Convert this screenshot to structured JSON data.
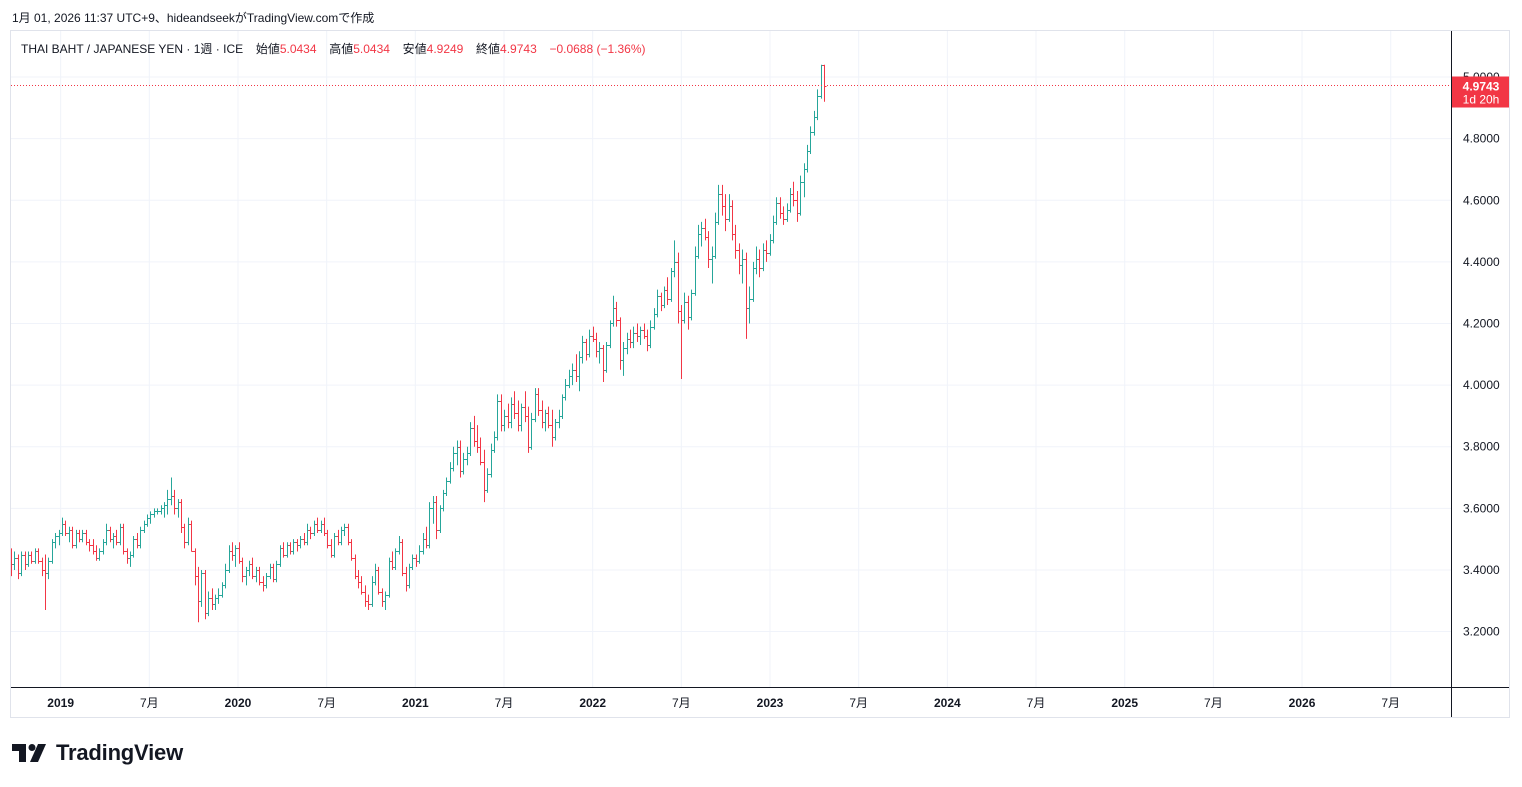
{
  "header": {
    "caption": "1月 01, 2026 11:37 UTC+9、hideandseekがTradingView.comで作成"
  },
  "legend": {
    "symbol": "THAI BAHT / JAPANESE YEN",
    "interval": "1週",
    "exchange": "ICE",
    "open_label": "始値",
    "open": "5.0434",
    "high_label": "高値",
    "high": "5.0434",
    "low_label": "安値",
    "low": "4.9249",
    "close_label": "終値",
    "close": "4.9743",
    "change": "−0.0688 (−1.36%)"
  },
  "price_tag": {
    "price": "4.9743",
    "countdown": "1d 20h"
  },
  "brand": {
    "name": "TradingView"
  },
  "colors": {
    "up": "#26a69a",
    "down": "#f23645",
    "grid": "#f0f3fa",
    "axis_text": "#131722",
    "border": "#e0e3eb"
  },
  "chart_data": {
    "type": "ohlc",
    "title": "THAI BAHT / JAPANESE YEN · 1週 · ICE",
    "interval": "weekly",
    "y_axis": {
      "side": "right",
      "ylim": [
        3.02,
        5.13
      ],
      "ticks": [
        "3.2000",
        "3.4000",
        "3.6000",
        "3.8000",
        "4.0000",
        "4.2000",
        "4.4000",
        "4.6000",
        "4.8000",
        "5.0000"
      ]
    },
    "x_axis": {
      "xlim": [
        2018.72,
        2026.84
      ],
      "ticks": [
        {
          "x": 2019.0,
          "label": "2019",
          "bold": true
        },
        {
          "x": 2019.5,
          "label": "7月",
          "bold": false
        },
        {
          "x": 2020.0,
          "label": "2020",
          "bold": true
        },
        {
          "x": 2020.5,
          "label": "7月",
          "bold": false
        },
        {
          "x": 2021.0,
          "label": "2021",
          "bold": true
        },
        {
          "x": 2021.5,
          "label": "7月",
          "bold": false
        },
        {
          "x": 2022.0,
          "label": "2022",
          "bold": true
        },
        {
          "x": 2022.5,
          "label": "7月",
          "bold": false
        },
        {
          "x": 2023.0,
          "label": "2023",
          "bold": true
        },
        {
          "x": 2023.5,
          "label": "7月",
          "bold": false
        },
        {
          "x": 2024.0,
          "label": "2024",
          "bold": true
        },
        {
          "x": 2024.5,
          "label": "7月",
          "bold": false
        },
        {
          "x": 2025.0,
          "label": "2025",
          "bold": true
        },
        {
          "x": 2025.5,
          "label": "7月",
          "bold": false
        },
        {
          "x": 2026.0,
          "label": "2026",
          "bold": true
        },
        {
          "x": 2026.5,
          "label": "7月",
          "bold": false
        }
      ]
    },
    "last_price": 4.9743,
    "series_start": 2018.72,
    "bar_step_years": 0.01918,
    "ohlc": [
      [
        3.45,
        3.47,
        3.38,
        3.42
      ],
      [
        3.42,
        3.46,
        3.4,
        3.44
      ],
      [
        3.44,
        3.45,
        3.37,
        3.39
      ],
      [
        3.39,
        3.46,
        3.38,
        3.45
      ],
      [
        3.45,
        3.46,
        3.4,
        3.42
      ],
      [
        3.42,
        3.46,
        3.41,
        3.45
      ],
      [
        3.45,
        3.46,
        3.42,
        3.43
      ],
      [
        3.43,
        3.47,
        3.42,
        3.46
      ],
      [
        3.46,
        3.47,
        3.42,
        3.43
      ],
      [
        3.43,
        3.44,
        3.38,
        3.4
      ],
      [
        3.4,
        3.45,
        3.27,
        3.39
      ],
      [
        3.39,
        3.44,
        3.37,
        3.43
      ],
      [
        3.43,
        3.5,
        3.42,
        3.49
      ],
      [
        3.49,
        3.52,
        3.47,
        3.51
      ],
      [
        3.51,
        3.53,
        3.48,
        3.52
      ],
      [
        3.52,
        3.57,
        3.51,
        3.55
      ],
      [
        3.55,
        3.56,
        3.51,
        3.52
      ],
      [
        3.52,
        3.54,
        3.49,
        3.53
      ],
      [
        3.53,
        3.54,
        3.47,
        3.48
      ],
      [
        3.48,
        3.53,
        3.47,
        3.52
      ],
      [
        3.52,
        3.53,
        3.49,
        3.5
      ],
      [
        3.5,
        3.53,
        3.49,
        3.52
      ],
      [
        3.52,
        3.53,
        3.48,
        3.49
      ],
      [
        3.49,
        3.5,
        3.46,
        3.48
      ],
      [
        3.48,
        3.5,
        3.45,
        3.46
      ],
      [
        3.46,
        3.48,
        3.43,
        3.44
      ],
      [
        3.44,
        3.47,
        3.43,
        3.46
      ],
      [
        3.46,
        3.5,
        3.45,
        3.49
      ],
      [
        3.49,
        3.55,
        3.48,
        3.53
      ],
      [
        3.53,
        3.54,
        3.49,
        3.5
      ],
      [
        3.5,
        3.52,
        3.47,
        3.51
      ],
      [
        3.51,
        3.53,
        3.48,
        3.49
      ],
      [
        3.49,
        3.55,
        3.48,
        3.54
      ],
      [
        3.54,
        3.55,
        3.45,
        3.46
      ],
      [
        3.46,
        3.47,
        3.42,
        3.44
      ],
      [
        3.44,
        3.46,
        3.41,
        3.45
      ],
      [
        3.45,
        3.51,
        3.44,
        3.5
      ],
      [
        3.5,
        3.52,
        3.47,
        3.48
      ],
      [
        3.48,
        3.54,
        3.47,
        3.53
      ],
      [
        3.53,
        3.56,
        3.52,
        3.55
      ],
      [
        3.55,
        3.58,
        3.54,
        3.57
      ],
      [
        3.57,
        3.59,
        3.55,
        3.58
      ],
      [
        3.58,
        3.6,
        3.57,
        3.59
      ],
      [
        3.59,
        3.6,
        3.58,
        3.59
      ],
      [
        3.59,
        3.61,
        3.58,
        3.6
      ],
      [
        3.6,
        3.62,
        3.57,
        3.61
      ],
      [
        3.61,
        3.66,
        3.58,
        3.63
      ],
      [
        3.63,
        3.7,
        3.61,
        3.64
      ],
      [
        3.64,
        3.66,
        3.58,
        3.6
      ],
      [
        3.6,
        3.63,
        3.57,
        3.62
      ],
      [
        3.62,
        3.63,
        3.52,
        3.54
      ],
      [
        3.54,
        3.55,
        3.47,
        3.49
      ],
      [
        3.49,
        3.57,
        3.48,
        3.55
      ],
      [
        3.55,
        3.56,
        3.46,
        3.46
      ],
      [
        3.46,
        3.47,
        3.35,
        3.38
      ],
      [
        3.38,
        3.41,
        3.23,
        3.3
      ],
      [
        3.3,
        3.4,
        3.28,
        3.39
      ],
      [
        3.39,
        3.4,
        3.24,
        3.26
      ],
      [
        3.26,
        3.33,
        3.25,
        3.31
      ],
      [
        3.31,
        3.34,
        3.27,
        3.29
      ],
      [
        3.29,
        3.32,
        3.27,
        3.31
      ],
      [
        3.31,
        3.34,
        3.29,
        3.32
      ],
      [
        3.32,
        3.36,
        3.31,
        3.35
      ],
      [
        3.35,
        3.42,
        3.34,
        3.4
      ],
      [
        3.4,
        3.48,
        3.39,
        3.46
      ],
      [
        3.46,
        3.49,
        3.43,
        3.45
      ],
      [
        3.45,
        3.48,
        3.41,
        3.47
      ],
      [
        3.47,
        3.49,
        3.42,
        3.43
      ],
      [
        3.43,
        3.44,
        3.36,
        3.38
      ],
      [
        3.38,
        3.41,
        3.35,
        3.4
      ],
      [
        3.4,
        3.43,
        3.38,
        3.42
      ],
      [
        3.42,
        3.44,
        3.37,
        3.38
      ],
      [
        3.38,
        3.41,
        3.36,
        3.4
      ],
      [
        3.4,
        3.41,
        3.35,
        3.36
      ],
      [
        3.36,
        3.38,
        3.33,
        3.35
      ],
      [
        3.35,
        3.39,
        3.34,
        3.38
      ],
      [
        3.38,
        3.42,
        3.37,
        3.41
      ],
      [
        3.41,
        3.42,
        3.36,
        3.37
      ],
      [
        3.37,
        3.43,
        3.36,
        3.42
      ],
      [
        3.42,
        3.48,
        3.41,
        3.47
      ],
      [
        3.47,
        3.49,
        3.44,
        3.45
      ],
      [
        3.45,
        3.49,
        3.44,
        3.48
      ],
      [
        3.48,
        3.49,
        3.45,
        3.46
      ],
      [
        3.46,
        3.5,
        3.45,
        3.49
      ],
      [
        3.49,
        3.5,
        3.46,
        3.48
      ],
      [
        3.48,
        3.51,
        3.47,
        3.5
      ],
      [
        3.5,
        3.52,
        3.48,
        3.49
      ],
      [
        3.49,
        3.55,
        3.48,
        3.53
      ],
      [
        3.53,
        3.54,
        3.5,
        3.52
      ],
      [
        3.52,
        3.56,
        3.51,
        3.55
      ],
      [
        3.55,
        3.57,
        3.52,
        3.53
      ],
      [
        3.53,
        3.56,
        3.52,
        3.55
      ],
      [
        3.55,
        3.57,
        3.51,
        3.52
      ],
      [
        3.52,
        3.53,
        3.47,
        3.48
      ],
      [
        3.48,
        3.5,
        3.44,
        3.45
      ],
      [
        3.45,
        3.52,
        3.44,
        3.51
      ],
      [
        3.51,
        3.53,
        3.48,
        3.49
      ],
      [
        3.49,
        3.54,
        3.48,
        3.53
      ],
      [
        3.53,
        3.55,
        3.51,
        3.54
      ],
      [
        3.54,
        3.55,
        3.48,
        3.49
      ],
      [
        3.49,
        3.5,
        3.43,
        3.44
      ],
      [
        3.44,
        3.45,
        3.37,
        3.38
      ],
      [
        3.38,
        3.4,
        3.34,
        3.36
      ],
      [
        3.36,
        3.38,
        3.32,
        3.33
      ],
      [
        3.33,
        3.35,
        3.28,
        3.3
      ],
      [
        3.3,
        3.32,
        3.27,
        3.29
      ],
      [
        3.29,
        3.38,
        3.28,
        3.36
      ],
      [
        3.36,
        3.42,
        3.35,
        3.4
      ],
      [
        3.4,
        3.41,
        3.32,
        3.33
      ],
      [
        3.33,
        3.34,
        3.28,
        3.3
      ],
      [
        3.3,
        3.33,
        3.27,
        3.32
      ],
      [
        3.32,
        3.44,
        3.31,
        3.43
      ],
      [
        3.43,
        3.46,
        3.4,
        3.41
      ],
      [
        3.41,
        3.47,
        3.4,
        3.46
      ],
      [
        3.46,
        3.51,
        3.45,
        3.49
      ],
      [
        3.49,
        3.5,
        3.38,
        3.39
      ],
      [
        3.39,
        3.41,
        3.33,
        3.35
      ],
      [
        3.35,
        3.42,
        3.34,
        3.41
      ],
      [
        3.41,
        3.45,
        3.4,
        3.44
      ],
      [
        3.44,
        3.45,
        3.41,
        3.43
      ],
      [
        3.43,
        3.48,
        3.42,
        3.46
      ],
      [
        3.46,
        3.52,
        3.45,
        3.5
      ],
      [
        3.5,
        3.54,
        3.47,
        3.48
      ],
      [
        3.48,
        3.62,
        3.47,
        3.6
      ],
      [
        3.6,
        3.64,
        3.55,
        3.62
      ],
      [
        3.62,
        3.64,
        3.5,
        3.53
      ],
      [
        3.53,
        3.61,
        3.52,
        3.6
      ],
      [
        3.6,
        3.66,
        3.59,
        3.65
      ],
      [
        3.65,
        3.7,
        3.64,
        3.69
      ],
      [
        3.69,
        3.75,
        3.68,
        3.73
      ],
      [
        3.73,
        3.8,
        3.72,
        3.78
      ],
      [
        3.78,
        3.82,
        3.74,
        3.8
      ],
      [
        3.8,
        3.82,
        3.7,
        3.72
      ],
      [
        3.72,
        3.78,
        3.71,
        3.76
      ],
      [
        3.76,
        3.8,
        3.74,
        3.78
      ],
      [
        3.78,
        3.88,
        3.77,
        3.86
      ],
      [
        3.86,
        3.9,
        3.8,
        3.82
      ],
      [
        3.82,
        3.87,
        3.78,
        3.8
      ],
      [
        3.8,
        3.83,
        3.74,
        3.75
      ],
      [
        3.75,
        3.79,
        3.62,
        3.66
      ],
      [
        3.66,
        3.73,
        3.65,
        3.71
      ],
      [
        3.71,
        3.81,
        3.7,
        3.79
      ],
      [
        3.79,
        3.85,
        3.78,
        3.83
      ],
      [
        3.83,
        3.97,
        3.82,
        3.95
      ],
      [
        3.95,
        3.97,
        3.85,
        3.87
      ],
      [
        3.87,
        3.92,
        3.85,
        3.9
      ],
      [
        3.9,
        3.94,
        3.86,
        3.88
      ],
      [
        3.88,
        3.96,
        3.86,
        3.94
      ],
      [
        3.94,
        3.98,
        3.89,
        3.91
      ],
      [
        3.91,
        3.95,
        3.85,
        3.87
      ],
      [
        3.87,
        3.94,
        3.85,
        3.93
      ],
      [
        3.93,
        3.98,
        3.88,
        3.9
      ],
      [
        3.9,
        3.93,
        3.78,
        3.8
      ],
      [
        3.8,
        3.91,
        3.79,
        3.89
      ],
      [
        3.89,
        3.99,
        3.88,
        3.97
      ],
      [
        3.97,
        3.99,
        3.9,
        3.92
      ],
      [
        3.92,
        3.95,
        3.86,
        3.88
      ],
      [
        3.88,
        3.92,
        3.85,
        3.91
      ],
      [
        3.91,
        3.93,
        3.86,
        3.87
      ],
      [
        3.87,
        3.92,
        3.8,
        3.83
      ],
      [
        3.83,
        3.89,
        3.82,
        3.88
      ],
      [
        3.88,
        3.92,
        3.86,
        3.9
      ],
      [
        3.9,
        3.97,
        3.89,
        3.96
      ],
      [
        3.96,
        4.02,
        3.95,
        4.0
      ],
      [
        4.0,
        4.05,
        3.99,
        4.03
      ],
      [
        4.03,
        4.07,
        4.0,
        4.05
      ],
      [
        4.05,
        4.1,
        4.01,
        4.03
      ],
      [
        4.03,
        4.11,
        3.98,
        4.09
      ],
      [
        4.09,
        4.16,
        4.07,
        4.14
      ],
      [
        4.14,
        4.15,
        4.08,
        4.1
      ],
      [
        4.1,
        4.18,
        4.09,
        4.16
      ],
      [
        4.16,
        4.19,
        4.14,
        4.15
      ],
      [
        4.15,
        4.17,
        4.09,
        4.11
      ],
      [
        4.11,
        4.14,
        4.07,
        4.12
      ],
      [
        4.12,
        4.13,
        4.01,
        4.05
      ],
      [
        4.05,
        4.14,
        4.04,
        4.13
      ],
      [
        4.13,
        4.21,
        4.12,
        4.2
      ],
      [
        4.2,
        4.29,
        4.19,
        4.25
      ],
      [
        4.25,
        4.27,
        4.19,
        4.21
      ],
      [
        4.21,
        4.22,
        4.05,
        4.08
      ],
      [
        4.08,
        4.14,
        4.03,
        4.12
      ],
      [
        4.12,
        4.17,
        4.1,
        4.15
      ],
      [
        4.15,
        4.18,
        4.12,
        4.14
      ],
      [
        4.14,
        4.19,
        4.12,
        4.17
      ],
      [
        4.17,
        4.2,
        4.14,
        4.16
      ],
      [
        4.16,
        4.19,
        4.13,
        4.18
      ],
      [
        4.18,
        4.2,
        4.15,
        4.16
      ],
      [
        4.16,
        4.18,
        4.11,
        4.13
      ],
      [
        4.13,
        4.21,
        4.12,
        4.19
      ],
      [
        4.19,
        4.25,
        4.18,
        4.23
      ],
      [
        4.23,
        4.31,
        4.22,
        4.29
      ],
      [
        4.29,
        4.3,
        4.24,
        4.26
      ],
      [
        4.26,
        4.32,
        4.25,
        4.31
      ],
      [
        4.31,
        4.35,
        4.26,
        4.28
      ],
      [
        4.28,
        4.38,
        4.27,
        4.37
      ],
      [
        4.37,
        4.47,
        4.35,
        4.4
      ],
      [
        4.4,
        4.43,
        4.2,
        4.24
      ],
      [
        4.24,
        4.26,
        4.02,
        4.21
      ],
      [
        4.21,
        4.3,
        4.2,
        4.27
      ],
      [
        4.27,
        4.29,
        4.18,
        4.22
      ],
      [
        4.22,
        4.31,
        4.21,
        4.3
      ],
      [
        4.3,
        4.45,
        4.29,
        4.42
      ],
      [
        4.42,
        4.52,
        4.41,
        4.49
      ],
      [
        4.49,
        4.53,
        4.45,
        4.51
      ],
      [
        4.51,
        4.54,
        4.47,
        4.48
      ],
      [
        4.48,
        4.5,
        4.38,
        4.41
      ],
      [
        4.41,
        4.45,
        4.33,
        4.42
      ],
      [
        4.42,
        4.56,
        4.41,
        4.53
      ],
      [
        4.53,
        4.65,
        4.52,
        4.62
      ],
      [
        4.62,
        4.65,
        4.55,
        4.58
      ],
      [
        4.58,
        4.62,
        4.5,
        4.54
      ],
      [
        4.54,
        4.62,
        4.53,
        4.58
      ],
      [
        4.58,
        4.6,
        4.47,
        4.49
      ],
      [
        4.49,
        4.52,
        4.41,
        4.44
      ],
      [
        4.44,
        4.46,
        4.36,
        4.39
      ],
      [
        4.39,
        4.44,
        4.33,
        4.41
      ],
      [
        4.41,
        4.43,
        4.15,
        4.25
      ],
      [
        4.25,
        4.32,
        4.2,
        4.28
      ],
      [
        4.28,
        4.4,
        4.27,
        4.38
      ],
      [
        4.38,
        4.45,
        4.36,
        4.41
      ],
      [
        4.41,
        4.44,
        4.35,
        4.38
      ],
      [
        4.38,
        4.46,
        4.37,
        4.44
      ],
      [
        4.44,
        4.47,
        4.4,
        4.43
      ],
      [
        4.43,
        4.49,
        4.42,
        4.47
      ],
      [
        4.47,
        4.55,
        4.46,
        4.53
      ],
      [
        4.53,
        4.61,
        4.52,
        4.59
      ],
      [
        4.59,
        4.61,
        4.54,
        4.56
      ],
      [
        4.56,
        4.58,
        4.52,
        4.54
      ],
      [
        4.54,
        4.59,
        4.53,
        4.57
      ],
      [
        4.57,
        4.64,
        4.56,
        4.62
      ],
      [
        4.62,
        4.66,
        4.58,
        4.6
      ],
      [
        4.6,
        4.63,
        4.53,
        4.56
      ],
      [
        4.56,
        4.68,
        4.55,
        4.66
      ],
      [
        4.66,
        4.72,
        4.61,
        4.7
      ],
      [
        4.7,
        4.78,
        4.69,
        4.76
      ],
      [
        4.76,
        4.84,
        4.75,
        4.82
      ],
      [
        4.82,
        4.89,
        4.81,
        4.87
      ],
      [
        4.87,
        4.96,
        4.86,
        4.94
      ],
      [
        4.94,
        5.04,
        4.93,
        5.04
      ],
      [
        5.04,
        5.04,
        4.92,
        4.97
      ]
    ]
  }
}
